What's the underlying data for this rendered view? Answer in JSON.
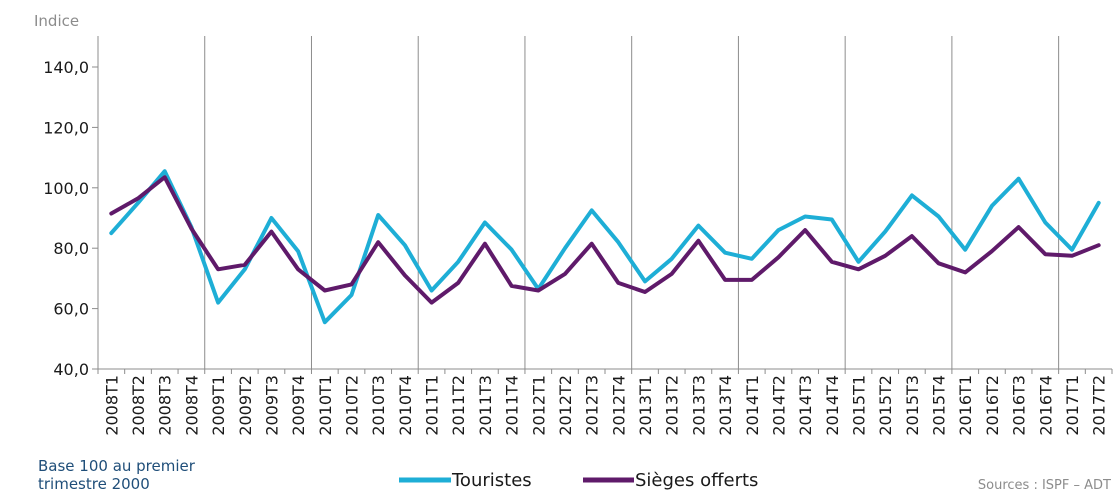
{
  "chart_data": {
    "type": "line",
    "ylabel": "Indice",
    "ylim": [
      40,
      145
    ],
    "yticks": [
      "40,0",
      "60,0",
      "80,0",
      "100,0",
      "120,0",
      "140,0"
    ],
    "categories": [
      "2008T1",
      "2008T2",
      "2008T3",
      "2008T4",
      "2009T1",
      "2009T2",
      "2009T3",
      "2009T4",
      "2010T1",
      "2010T2",
      "2010T3",
      "2010T4",
      "2011T1",
      "2011T2",
      "2011T3",
      "2011T4",
      "2012T1",
      "2012T2",
      "2012T3",
      "2012T4",
      "2013T1",
      "2013T2",
      "2013T3",
      "2013T4",
      "2014T1",
      "2014T2",
      "2014T3",
      "2014T4",
      "2015T1",
      "2015T2",
      "2015T3",
      "2015T4",
      "2016T1",
      "2016T2",
      "2016T3",
      "2016T4",
      "2017T1",
      "2017T2"
    ],
    "series": [
      {
        "name": "Touristes",
        "color": "#1eaed6",
        "values": [
          85,
          95,
          105.5,
          87,
          62,
          73,
          90,
          79,
          55.5,
          64.5,
          91,
          81,
          66,
          75.5,
          88.5,
          79.5,
          66.5,
          80,
          92.5,
          82,
          69,
          76.5,
          87.5,
          78.5,
          76.5,
          86,
          90.5,
          89.5,
          75.5,
          85.5,
          97.5,
          90.5,
          79.5,
          94,
          103,
          88.5,
          79.5,
          95
        ]
      },
      {
        "name": "Sièges offerts",
        "color": "#5f1a6a",
        "values": [
          91.5,
          96.5,
          103.5,
          86.5,
          73,
          74.5,
          85.5,
          73,
          66,
          68,
          82,
          71,
          62,
          68.5,
          81.5,
          67.5,
          66,
          71.5,
          81.5,
          68.5,
          65.5,
          71.5,
          82.5,
          69.5,
          69.5,
          77,
          86,
          75.5,
          73,
          77.5,
          84,
          75,
          72,
          79,
          87,
          78,
          77.5,
          81
        ]
      }
    ],
    "grid": "vertical lines every 4 quarters",
    "legend": "bottom-center"
  },
  "note": "Base 100 au premier trimestre 2000",
  "source": "Sources : ISPF – ADT"
}
